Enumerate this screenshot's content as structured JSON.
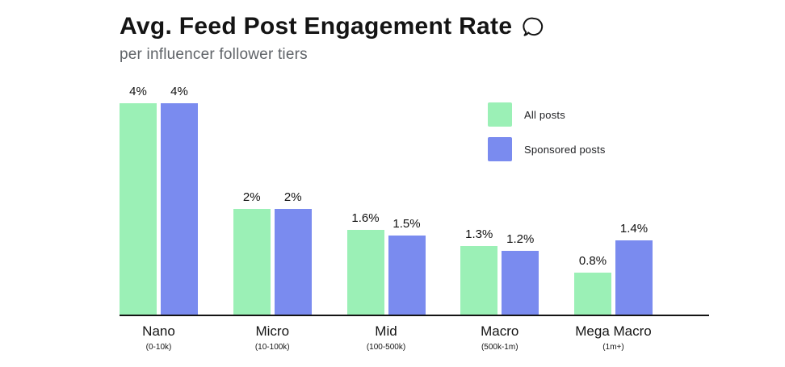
{
  "chart_data": {
    "type": "bar",
    "title": "Avg. Feed Post Engagement Rate",
    "subtitle": "per influencer follower tiers",
    "title_icon": "speech-bubble",
    "categories": [
      "Nano",
      "Micro",
      "Mid",
      "Macro",
      "Mega Macro"
    ],
    "category_sublabels": [
      "(0-10k)",
      "(10-100k)",
      "(100-500k)",
      "(500k-1m)",
      "(1m+)"
    ],
    "series": [
      {
        "name": "All posts",
        "color": "#9bf0b6",
        "values": [
          4,
          2,
          1.6,
          1.3,
          0.8
        ],
        "value_labels": [
          "4%",
          "2%",
          "1.6%",
          "1.3%",
          "0.8%"
        ]
      },
      {
        "name": "Sponsored posts",
        "color": "#7a8bef",
        "values": [
          4,
          2,
          1.5,
          1.2,
          1.4
        ],
        "value_labels": [
          "4%",
          "2%",
          "1.5%",
          "1.2%",
          "1.4%"
        ]
      }
    ],
    "xlabel": "",
    "ylabel": "",
    "ylim": [
      0,
      4
    ],
    "grid": false,
    "legend_position": "upper-right",
    "axis_color": "#141414"
  },
  "colors": {
    "background": "#ffffff",
    "title": "#141414",
    "subtitle": "#5f6368"
  }
}
